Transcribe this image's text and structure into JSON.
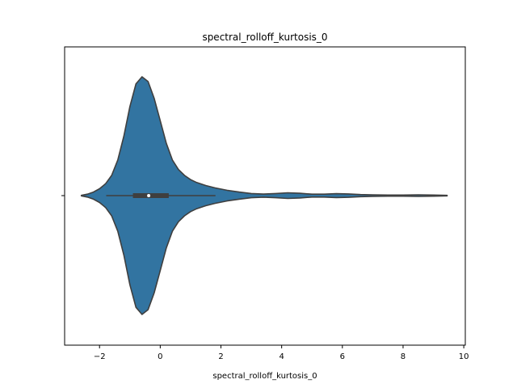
{
  "chart_data": {
    "type": "violin",
    "title": "spectral_rolloff_kurtosis_0",
    "xlabel": "spectral_rolloff_kurtosis_0",
    "ylabel": "",
    "xlim": [
      -3.15,
      10.05
    ],
    "xticks": [
      -2,
      0,
      2,
      4,
      6,
      8,
      10
    ],
    "xtick_labels": [
      "−2",
      "0",
      "2",
      "4",
      "6",
      "8",
      "10"
    ],
    "grid": false,
    "fill_color": "#3274a1",
    "edge_color": "#3f3f3f",
    "box": {
      "q1": -0.9,
      "median": -0.38,
      "q3": 0.28,
      "whisker_low": -1.78,
      "whisker_high": 1.82
    },
    "density": {
      "x": [
        -2.6,
        -2.4,
        -2.2,
        -2.0,
        -1.8,
        -1.6,
        -1.4,
        -1.2,
        -1.0,
        -0.8,
        -0.6,
        -0.4,
        -0.2,
        0.0,
        0.2,
        0.4,
        0.6,
        0.8,
        1.0,
        1.2,
        1.5,
        1.8,
        2.2,
        2.6,
        3.0,
        3.4,
        3.8,
        4.2,
        4.6,
        5.0,
        5.4,
        5.8,
        6.2,
        6.6,
        7.0,
        7.5,
        8.0,
        8.5,
        9.0,
        9.45
      ],
      "half_width": [
        0.002,
        0.012,
        0.03,
        0.058,
        0.1,
        0.17,
        0.3,
        0.5,
        0.75,
        0.94,
        1.0,
        0.96,
        0.82,
        0.63,
        0.44,
        0.3,
        0.22,
        0.17,
        0.135,
        0.11,
        0.085,
        0.065,
        0.045,
        0.03,
        0.018,
        0.013,
        0.018,
        0.024,
        0.02,
        0.012,
        0.012,
        0.016,
        0.014,
        0.009,
        0.006,
        0.005,
        0.005,
        0.007,
        0.005,
        0.002
      ]
    }
  }
}
